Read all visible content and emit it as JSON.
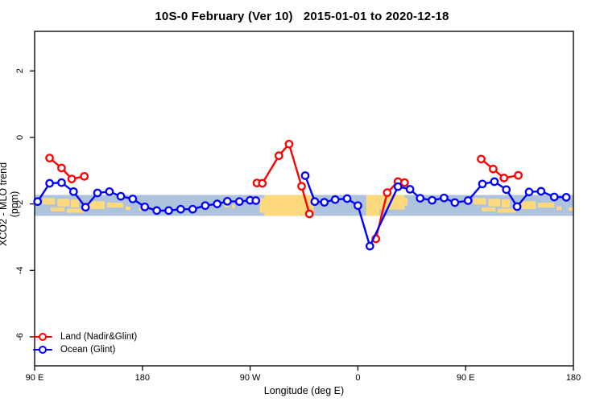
{
  "title": "10S-0 February (Ver 10)   2015-01-01 to 2020-12-18",
  "chart_data": {
    "type": "line",
    "title": "10S-0 February (Ver 10)   2015-01-01 to 2020-12-18",
    "xlabel": "Longitude (deg E)",
    "ylabel": "XCO2 - MLO trend (ppm)",
    "xlim": [
      90,
      540
    ],
    "ylim": [
      -6.87,
      3.19
    ],
    "grid": false,
    "x_ticks": [
      {
        "pos": 90,
        "label": "90 E"
      },
      {
        "pos": 180,
        "label": "180"
      },
      {
        "pos": 270,
        "label": "90 W"
      },
      {
        "pos": 360,
        "label": "0"
      },
      {
        "pos": 450,
        "label": "90 E"
      },
      {
        "pos": 540,
        "label": "180"
      }
    ],
    "y_ticks": [
      {
        "pos": 2,
        "label": "2"
      },
      {
        "pos": 0,
        "label": "0"
      },
      {
        "pos": -2,
        "label": "-2"
      },
      {
        "pos": -4,
        "label": "-4"
      },
      {
        "pos": -6,
        "label": "-6"
      }
    ],
    "legend": {
      "position": "bottom-left",
      "items": [
        {
          "label": "Land (Nadir&Glint)",
          "color": "#FF0000"
        },
        {
          "label": "Ocean (Glint)",
          "color": "#0000FF"
        }
      ]
    },
    "map_band": {
      "value_top": -1.73,
      "value_bottom": -2.36,
      "ocean_color": "#AEC3DC",
      "land_color": "#FED97E",
      "land_patches": [
        [
          96.5,
          107,
          0.15,
          0.45
        ],
        [
          109,
          119,
          0.18,
          0.55
        ],
        [
          120,
          127,
          0.22,
          0.6
        ],
        [
          103.5,
          115,
          0.6,
          0.78
        ],
        [
          117,
          132.5,
          0.65,
          0.85
        ],
        [
          135,
          148.5,
          0.3,
          0.67
        ],
        [
          150.5,
          164,
          0.37,
          0.6
        ],
        [
          166,
          170,
          0.55,
          0.72
        ],
        [
          177,
          181,
          0.6,
          0.75
        ],
        [
          249,
          252,
          0.35,
          0.6
        ],
        [
          255,
          257,
          0.45,
          0.65
        ],
        [
          278,
          282,
          0.15,
          0.85
        ],
        [
          282,
          323,
          0.0,
          1.0
        ],
        [
          367,
          378,
          0.0,
          1.0
        ],
        [
          378,
          399,
          0.0,
          0.7
        ],
        [
          399,
          401.5,
          0.15,
          0.5
        ],
        [
          456.5,
          467,
          0.15,
          0.45
        ],
        [
          469,
          479,
          0.18,
          0.55
        ],
        [
          480,
          487,
          0.22,
          0.6
        ],
        [
          463.5,
          475,
          0.6,
          0.78
        ],
        [
          477,
          492.5,
          0.65,
          0.85
        ],
        [
          495,
          508.5,
          0.3,
          0.67
        ],
        [
          510.5,
          524,
          0.37,
          0.6
        ],
        [
          526,
          530,
          0.55,
          0.72
        ],
        [
          536,
          540,
          0.6,
          0.75
        ]
      ]
    },
    "series": [
      {
        "name": "Land (Nadir&Glint)",
        "color": "#FF0000",
        "marker": "open-circle",
        "segments": [
          [
            [
              102.5,
              -0.62
            ],
            [
              112.5,
              -0.92
            ],
            [
              121,
              -1.25
            ],
            [
              131.5,
              -1.17
            ]
          ],
          [
            [
              275.7,
              -1.37
            ],
            [
              280.2,
              -1.38
            ],
            [
              294,
              -0.55
            ],
            [
              302.5,
              -0.2
            ],
            [
              313,
              -1.47
            ],
            [
              319.5,
              -2.3
            ]
          ],
          [
            [
              375,
              -3.05
            ],
            [
              384.5,
              -1.66
            ],
            [
              393.5,
              -1.33
            ],
            [
              399,
              -1.36
            ]
          ],
          [
            [
              463,
              -0.65
            ],
            [
              473,
              -0.95
            ],
            [
              482,
              -1.22
            ],
            [
              494,
              -1.14
            ]
          ]
        ]
      },
      {
        "name": "Ocean (Glint)",
        "color": "#0000FF",
        "marker": "open-circle",
        "segments": [
          [
            [
              92.5,
              -1.93
            ],
            [
              102.5,
              -1.38
            ],
            [
              112.5,
              -1.36
            ],
            [
              122.5,
              -1.63
            ],
            [
              132.5,
              -2.1
            ],
            [
              142.5,
              -1.67
            ],
            [
              152.5,
              -1.63
            ],
            [
              162,
              -1.77
            ],
            [
              172,
              -1.85
            ],
            [
              182,
              -2.09
            ],
            [
              192,
              -2.2
            ],
            [
              202,
              -2.2
            ],
            [
              212,
              -2.16
            ],
            [
              222,
              -2.16
            ],
            [
              232.5,
              -2.05
            ],
            [
              242.5,
              -2.0
            ],
            [
              251,
              -1.92
            ],
            [
              261,
              -1.93
            ],
            [
              270,
              -1.89
            ],
            [
              274.8,
              -1.9
            ]
          ],
          [
            [
              316,
              -1.15
            ],
            [
              324,
              -1.93
            ],
            [
              332,
              -1.95
            ],
            [
              341,
              -1.87
            ],
            [
              351,
              -1.84
            ],
            [
              360,
              -2.05
            ],
            [
              370,
              -3.27
            ],
            [
              393.5,
              -1.48
            ],
            [
              403.5,
              -1.56
            ],
            [
              412,
              -1.83
            ],
            [
              422,
              -1.89
            ],
            [
              432,
              -1.82
            ],
            [
              441,
              -1.96
            ],
            [
              452,
              -1.9
            ],
            [
              464,
              -1.4
            ],
            [
              474,
              -1.33
            ],
            [
              484,
              -1.57
            ],
            [
              493,
              -2.08
            ],
            [
              503,
              -1.64
            ],
            [
              513,
              -1.62
            ],
            [
              524,
              -1.79
            ],
            [
              534,
              -1.8
            ]
          ]
        ]
      }
    ]
  }
}
